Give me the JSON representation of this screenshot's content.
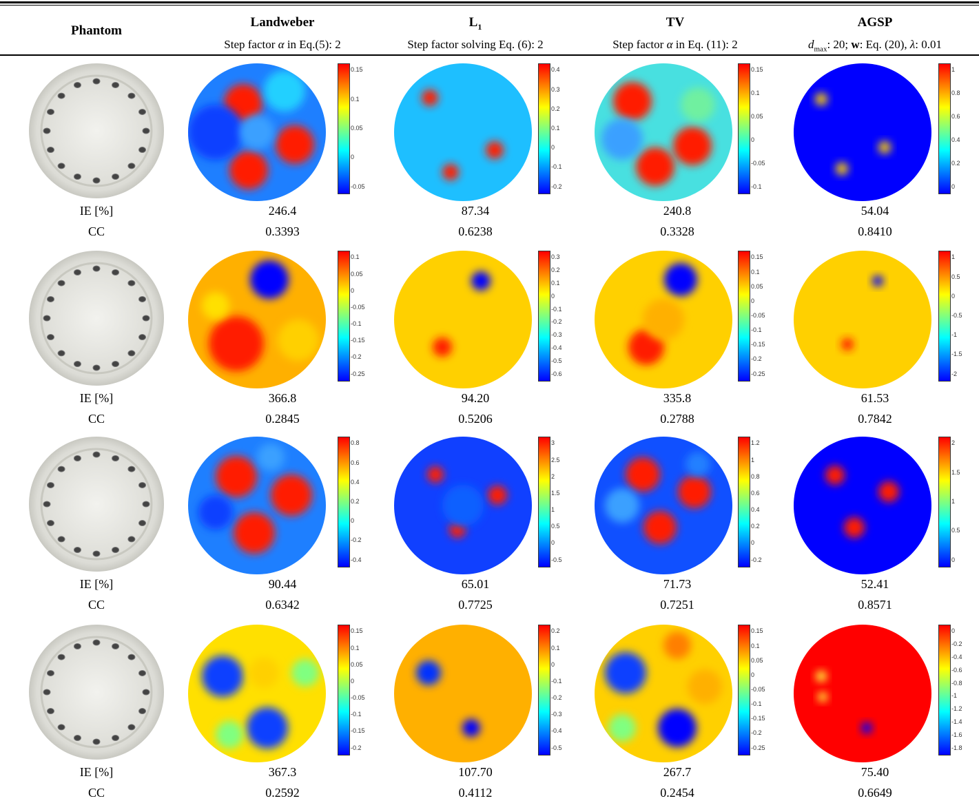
{
  "header": {
    "phantom": "Phantom",
    "methods": [
      {
        "name": "Landweber",
        "param": "Step factor α in Eq.(5): 2"
      },
      {
        "name": "L₁",
        "param": "Step factor solving Eq. (6): 2"
      },
      {
        "name": "TV",
        "param": "Step factor α in Eq. (11): 2"
      },
      {
        "name": "AGSP",
        "param": "d_max: 20; w: Eq. (20), λ: 0.01"
      }
    ]
  },
  "metric_labels": {
    "ie": "IE [%]",
    "cc": "CC"
  },
  "rows": [
    {
      "ie": [
        "246.4",
        "87.34",
        "240.8",
        "54.04"
      ],
      "cc": [
        "0.3393",
        "0.6238",
        "0.3328",
        "0.8410"
      ],
      "colorbars": [
        [
          "0.15",
          "0.1",
          "0.05",
          "0",
          "-0.05"
        ],
        [
          "0.4",
          "0.3",
          "0.2",
          "0.1",
          "0",
          "-0.1",
          "-0.2"
        ],
        [
          "0.15",
          "0.1",
          "0.05",
          "0",
          "-0.05",
          "-0.1"
        ],
        [
          "1",
          "0.8",
          "0.6",
          "0.4",
          "0.2",
          "0"
        ]
      ]
    },
    {
      "ie": [
        "366.8",
        "94.20",
        "335.8",
        "61.53"
      ],
      "cc": [
        "0.2845",
        "0.5206",
        "0.2788",
        "0.7842"
      ],
      "colorbars": [
        [
          "0.1",
          "0.05",
          "0",
          "-0.05",
          "-0.1",
          "-0.15",
          "-0.2",
          "-0.25"
        ],
        [
          "0.3",
          "0.2",
          "0.1",
          "0",
          "-0.1",
          "-0.2",
          "-0.3",
          "-0.4",
          "-0.5",
          "-0.6"
        ],
        [
          "0.15",
          "0.1",
          "0.05",
          "0",
          "-0.05",
          "-0.1",
          "-0.15",
          "-0.2",
          "-0.25"
        ],
        [
          "1",
          "0.5",
          "0",
          "-0.5",
          "-1",
          "-1.5",
          "-2"
        ]
      ]
    },
    {
      "ie": [
        "90.44",
        "65.01",
        "71.73",
        "52.41"
      ],
      "cc": [
        "0.6342",
        "0.7725",
        "0.7251",
        "0.8571"
      ],
      "colorbars": [
        [
          "0.8",
          "0.6",
          "0.4",
          "0.2",
          "0",
          "-0.2",
          "-0.4"
        ],
        [
          "3",
          "2.5",
          "2",
          "1.5",
          "1",
          "0.5",
          "0",
          "-0.5"
        ],
        [
          "1.2",
          "1",
          "0.8",
          "0.6",
          "0.4",
          "0.2",
          "0",
          "-0.2"
        ],
        [
          "2",
          "1.5",
          "1",
          "0.5",
          "0"
        ]
      ]
    },
    {
      "ie": [
        "367.3",
        "107.70",
        "267.7",
        "75.40"
      ],
      "cc": [
        "0.2592",
        "0.4112",
        "0.2454",
        "0.6649"
      ],
      "colorbars": [
        [
          "0.15",
          "0.1",
          "0.05",
          "0",
          "-0.05",
          "-0.1",
          "-0.15",
          "-0.2"
        ],
        [
          "0.2",
          "0.1",
          "0",
          "-0.1",
          "-0.2",
          "-0.3",
          "-0.4",
          "-0.5"
        ],
        [
          "0.15",
          "0.1",
          "0.05",
          "0",
          "-0.05",
          "-0.1",
          "-0.15",
          "-0.2",
          "-0.25"
        ],
        [
          "0",
          "-0.2",
          "-0.4",
          "-0.6",
          "-0.8",
          "-1",
          "-1.2",
          "-1.4",
          "-1.6",
          "-1.8"
        ]
      ]
    }
  ],
  "colors": {
    "jet": [
      "#00007f",
      "#0000ff",
      "#007fff",
      "#00ffff",
      "#7fff7f",
      "#ffff00",
      "#ff7f00",
      "#ff0000",
      "#7f0000"
    ]
  }
}
